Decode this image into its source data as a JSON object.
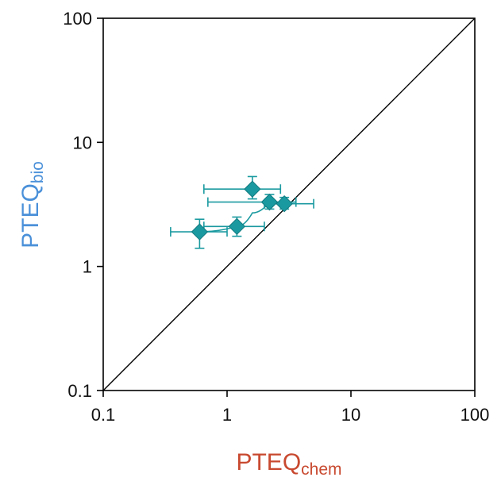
{
  "chart_data": {
    "type": "scatter",
    "title": "",
    "xlabel": {
      "main": "PTEQ",
      "sub": "chem",
      "color": "#c8492f"
    },
    "ylabel": {
      "main": "PTEQ",
      "sub": "bio",
      "color": "#4a90d9"
    },
    "x_scale": "log",
    "y_scale": "log",
    "xlim": [
      0.1,
      100
    ],
    "ylim": [
      0.1,
      100
    ],
    "x_ticks": [
      {
        "value": 0.1,
        "label": "0.1"
      },
      {
        "value": 1,
        "label": "1"
      },
      {
        "value": 10,
        "label": "10"
      },
      {
        "value": 100,
        "label": "100"
      }
    ],
    "y_ticks": [
      {
        "value": 0.1,
        "label": "0.1"
      },
      {
        "value": 1,
        "label": "1"
      },
      {
        "value": 10,
        "label": "10"
      },
      {
        "value": 100,
        "label": "100"
      }
    ],
    "grid": false,
    "reference_line": {
      "type": "1:1",
      "color": "#000000"
    },
    "marker": {
      "shape": "diamond",
      "color": "#1a9aa0"
    },
    "points": [
      {
        "x": 0.6,
        "y": 1.9,
        "x_err": [
          0.35,
          1.0
        ],
        "y_err": [
          1.4,
          2.4
        ]
      },
      {
        "x": 1.2,
        "y": 2.1,
        "x_err": [
          0.65,
          2.0
        ],
        "y_err": [
          1.75,
          2.5
        ]
      },
      {
        "x": 1.6,
        "y": 4.2,
        "x_err": [
          0.65,
          2.7
        ],
        "y_err": [
          3.5,
          5.3
        ]
      },
      {
        "x": 2.2,
        "y": 3.3,
        "x_err": [
          0.7,
          3.6
        ],
        "y_err": [
          2.9,
          3.8
        ]
      },
      {
        "x": 2.9,
        "y": 3.2,
        "x_err": [
          2.0,
          5.0
        ],
        "y_err": [
          2.9,
          3.6
        ]
      }
    ],
    "trend_path": [
      [
        0.6,
        1.9
      ],
      [
        1.2,
        2.1
      ],
      [
        1.6,
        2.7
      ],
      [
        2.2,
        3.3
      ],
      [
        2.9,
        3.2
      ]
    ]
  }
}
